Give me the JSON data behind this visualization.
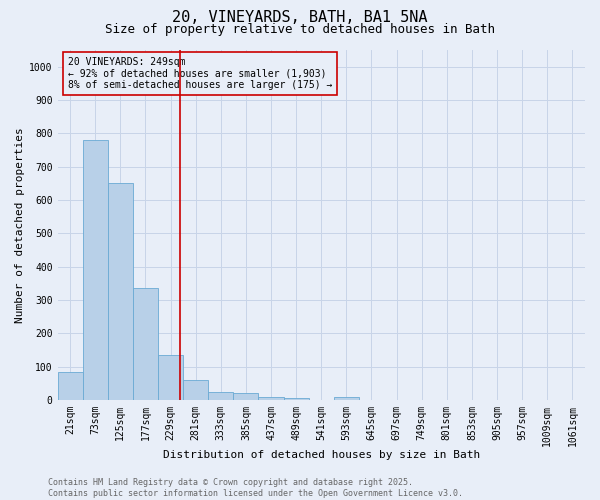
{
  "title": "20, VINEYARDS, BATH, BA1 5NA",
  "subtitle": "Size of property relative to detached houses in Bath",
  "xlabel": "Distribution of detached houses by size in Bath",
  "ylabel": "Number of detached properties",
  "categories": [
    "21sqm",
    "73sqm",
    "125sqm",
    "177sqm",
    "229sqm",
    "281sqm",
    "333sqm",
    "385sqm",
    "437sqm",
    "489sqm",
    "541sqm",
    "593sqm",
    "645sqm",
    "697sqm",
    "749sqm",
    "801sqm",
    "853sqm",
    "905sqm",
    "957sqm",
    "1009sqm",
    "1061sqm"
  ],
  "values": [
    85,
    780,
    650,
    335,
    135,
    60,
    25,
    20,
    10,
    5,
    0,
    10,
    0,
    0,
    0,
    0,
    0,
    0,
    0,
    0,
    0
  ],
  "bar_color": "#b8d0e8",
  "bar_edge_color": "#6aaad4",
  "vline_color": "#cc0000",
  "annotation_text": "20 VINEYARDS: 249sqm\n← 92% of detached houses are smaller (1,903)\n8% of semi-detached houses are larger (175) →",
  "annotation_box_color": "#cc0000",
  "ylim": [
    0,
    1050
  ],
  "yticks": [
    0,
    100,
    200,
    300,
    400,
    500,
    600,
    700,
    800,
    900,
    1000
  ],
  "footer": "Contains HM Land Registry data © Crown copyright and database right 2025.\nContains public sector information licensed under the Open Government Licence v3.0.",
  "figure_bg_color": "#e8eef8",
  "plot_bg_color": "#e8eef8",
  "grid_color": "#c8d4e8",
  "title_fontsize": 11,
  "subtitle_fontsize": 9,
  "axis_label_fontsize": 8,
  "tick_fontsize": 7,
  "annotation_fontsize": 7,
  "footer_fontsize": 6
}
